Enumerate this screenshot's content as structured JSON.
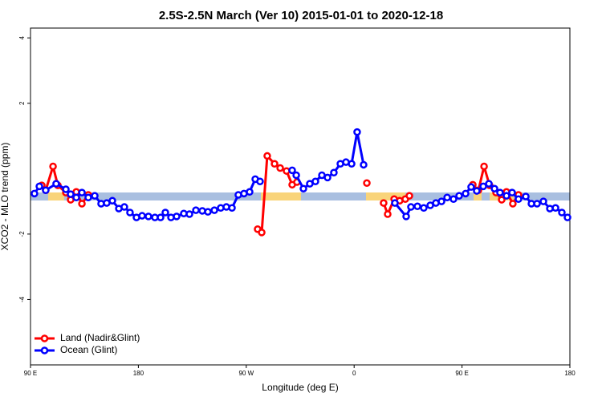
{
  "chart_data": {
    "type": "line",
    "title": "2.5S-2.5N March (Ver 10)   2015-01-01 to 2020-12-18",
    "x_label": "Longitude (deg E)",
    "y_label": "XCO2 - MLO trend (ppm)",
    "xlim": [
      90,
      540
    ],
    "xticks": [
      {
        "value": 90,
        "label": "90 E"
      },
      180,
      {
        "value": 270,
        "label": "90 W"
      },
      {
        "value": 360,
        "label": "0"
      },
      {
        "value": 450,
        "label": "90 E"
      },
      {
        "value": 540,
        "label": "180"
      }
    ],
    "ylim": [
      -6,
      4.3
    ],
    "yticks": [
      -4,
      -2,
      2,
      4
    ],
    "legend": "bottom-left",
    "series": [
      {
        "name": "Land (Nadir&Glint)",
        "color": "#ff0000",
        "x": [
          99.4,
          102.7,
          108.8,
          112.8,
          119.5,
          123.5,
          128.2,
          132.9,
          138.2,
          null,
          279.5,
          282.9,
          287.5,
          293.6,
          298.3,
          303.6,
          308.3,
          312.3,
          null,
          370.6,
          null,
          384.6,
          388.0,
          393.4,
          398.0,
          402.7,
          406.1,
          null,
          459.0,
          463.7,
          468.4,
          473.0,
          478.4,
          483.1,
          487.1,
          492.4,
          497.1
        ],
        "values": [
          -0.51,
          -0.66,
          0.07,
          -0.51,
          -0.73,
          -0.95,
          -0.71,
          -1.07,
          -0.8,
          null,
          -1.85,
          -1.95,
          0.39,
          0.15,
          0.02,
          -0.07,
          -0.49,
          -0.41,
          null,
          -0.44,
          null,
          -1.05,
          -1.39,
          -0.93,
          -0.98,
          -0.93,
          -0.83,
          null,
          -0.49,
          -0.66,
          0.07,
          -0.51,
          -0.73,
          -0.95,
          -0.71,
          -1.07,
          -0.8
        ]
      },
      {
        "name": "Ocean (Glint)",
        "color": "#0000ff",
        "x": [
          93.3,
          97.4,
          102.7,
          111.4,
          119.5,
          123.5,
          128.2,
          132.9,
          138.2,
          143.6,
          148.9,
          153.6,
          158.3,
          163.7,
          168.3,
          173.0,
          178.4,
          183.1,
          188.4,
          193.8,
          198.5,
          202.5,
          207.2,
          211.9,
          217.9,
          222.6,
          228.0,
          233.3,
          238.0,
          243.4,
          248.7,
          253.4,
          258.1,
          263.4,
          268.1,
          272.8,
          277.5,
          281.5,
          null,
          308.3,
          311.7,
          317.7,
          323.0,
          327.7,
          333.1,
          337.8,
          343.1,
          348.5,
          353.2,
          357.9,
          362.5,
          367.9,
          null,
          394.0,
          403.4,
          407.4,
          412.8,
          418.1,
          423.5,
          428.2,
          432.9,
          437.6,
          442.9,
          447.6,
          453.0,
          457.6,
          462.3,
          467.7,
          472.4,
          477.1,
          481.7,
          487.1,
          491.8,
          497.1,
          503.2,
          507.9,
          512.6,
          517.9,
          523.3,
          528.0,
          533.3,
          538.0
        ],
        "values": [
          -0.76,
          -0.54,
          -0.66,
          -0.46,
          -0.63,
          -0.78,
          -0.88,
          -0.73,
          -0.88,
          -0.83,
          -1.07,
          -1.05,
          -0.98,
          -1.22,
          -1.17,
          -1.34,
          -1.49,
          -1.44,
          -1.46,
          -1.49,
          -1.49,
          -1.34,
          -1.49,
          -1.46,
          -1.37,
          -1.39,
          -1.27,
          -1.29,
          -1.32,
          -1.27,
          -1.2,
          -1.17,
          -1.2,
          -0.8,
          -0.76,
          -0.71,
          -0.32,
          -0.39,
          null,
          -0.05,
          -0.2,
          -0.61,
          -0.46,
          -0.39,
          -0.2,
          -0.27,
          -0.12,
          0.15,
          0.2,
          0.15,
          1.12,
          0.12,
          null,
          -1.05,
          -1.46,
          -1.17,
          -1.15,
          -1.2,
          -1.12,
          -1.05,
          -1.0,
          -0.88,
          -0.93,
          -0.83,
          -0.76,
          -0.56,
          -0.68,
          -0.54,
          -0.46,
          -0.61,
          -0.73,
          -0.83,
          -0.73,
          -0.93,
          -0.85,
          -1.07,
          -1.07,
          -1.0,
          -1.22,
          -1.2,
          -1.34,
          -1.49
        ]
      }
    ]
  }
}
